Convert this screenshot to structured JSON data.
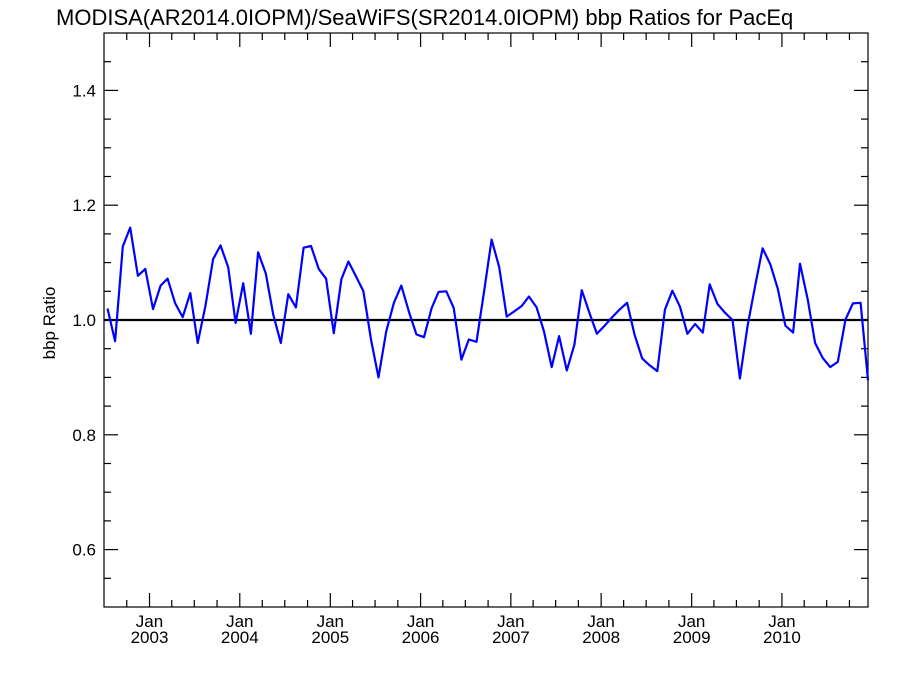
{
  "chart_data": {
    "type": "line",
    "title": "MODISA(AR2014.0IOPM)/SeaWiFS(SR2014.0IOPM)  bbp Ratios for PacEq",
    "xlabel": "",
    "ylabel": "bbp Ratio",
    "xlim": [
      "2002-07-01",
      "2010-12-15"
    ],
    "ylim": [
      0.5,
      1.5
    ],
    "y_ticks": [
      "0.6",
      "0.8",
      "1.0",
      "1.2",
      "1.4"
    ],
    "x_ticks": [
      {
        "month": "Jan",
        "year": "2003"
      },
      {
        "month": "Jan",
        "year": "2004"
      },
      {
        "month": "Jan",
        "year": "2005"
      },
      {
        "month": "Jan",
        "year": "2006"
      },
      {
        "month": "Jan",
        "year": "2007"
      },
      {
        "month": "Jan",
        "year": "2008"
      },
      {
        "month": "Jan",
        "year": "2009"
      },
      {
        "month": "Jan",
        "year": "2010"
      }
    ],
    "reference_line": 1.0,
    "colors": {
      "series": "#0000ff",
      "reference": "#000000",
      "axes": "#000000"
    },
    "series": [
      {
        "x": [
          "2002-07",
          "2002-08",
          "2002-09",
          "2002-10",
          "2002-11",
          "2002-12",
          "2003-01",
          "2003-02",
          "2003-03",
          "2003-04",
          "2003-05",
          "2003-06",
          "2003-07",
          "2003-08",
          "2003-09",
          "2003-10",
          "2003-11",
          "2003-12",
          "2004-01",
          "2004-02",
          "2004-03",
          "2004-04",
          "2004-05",
          "2004-06",
          "2004-07",
          "2004-08",
          "2004-09",
          "2004-10",
          "2004-11",
          "2004-12",
          "2005-01",
          "2005-02",
          "2005-03",
          "2005-04",
          "2005-05",
          "2005-06",
          "2005-07",
          "2005-08",
          "2005-09",
          "2005-10",
          "2005-11",
          "2005-12",
          "2006-01",
          "2006-02",
          "2006-03",
          "2006-04",
          "2006-05",
          "2006-06",
          "2006-07",
          "2006-08",
          "2006-09",
          "2006-10",
          "2006-11",
          "2006-12",
          "2007-01",
          "2007-02",
          "2007-03",
          "2007-04",
          "2007-05",
          "2007-06",
          "2007-07",
          "2007-08",
          "2007-09",
          "2007-10",
          "2007-11",
          "2007-12",
          "2008-01",
          "2008-02",
          "2008-03",
          "2008-04",
          "2008-05",
          "2008-06",
          "2008-07",
          "2008-08",
          "2008-09",
          "2008-10",
          "2008-11",
          "2008-12",
          "2009-01",
          "2009-02",
          "2009-03",
          "2009-04",
          "2009-05",
          "2009-06",
          "2009-07",
          "2009-08",
          "2009-09",
          "2009-10",
          "2009-11",
          "2009-12",
          "2010-01",
          "2010-02",
          "2010-03",
          "2010-04",
          "2010-05",
          "2010-06",
          "2010-07",
          "2010-08",
          "2010-09",
          "2010-10",
          "2010-11",
          "2010-12"
        ],
        "y": [
          1.02,
          0.963,
          1.128,
          1.161,
          1.077,
          1.089,
          1.019,
          1.06,
          1.072,
          1.029,
          1.005,
          1.047,
          0.96,
          1.024,
          1.106,
          1.13,
          1.092,
          0.995,
          1.064,
          0.976,
          1.118,
          1.081,
          1.01,
          0.96,
          1.045,
          1.022,
          1.126,
          1.129,
          1.089,
          1.072,
          0.977,
          1.071,
          1.102,
          1.076,
          1.05,
          0.965,
          0.9,
          0.98,
          1.03,
          1.06,
          1.014,
          0.975,
          0.97,
          1.021,
          1.049,
          1.05,
          1.021,
          0.931,
          0.966,
          0.962,
          1.05,
          1.14,
          1.092,
          1.006,
          1.015,
          1.025,
          1.041,
          1.022,
          0.98,
          0.918,
          0.972,
          0.912,
          0.957,
          1.052,
          1.012,
          0.976,
          0.99,
          1.005,
          1.018,
          1.03,
          0.975,
          0.933,
          0.921,
          0.911,
          1.018,
          1.051,
          1.023,
          0.976,
          0.993,
          0.978,
          1.062,
          1.028,
          1.013,
          1.0,
          0.898,
          0.99,
          1.06,
          1.125,
          1.097,
          1.055,
          0.99,
          0.978,
          1.098,
          1.036,
          0.96,
          0.934,
          0.918,
          0.927,
          1.001,
          1.029,
          1.03,
          0.895
        ]
      }
    ]
  }
}
